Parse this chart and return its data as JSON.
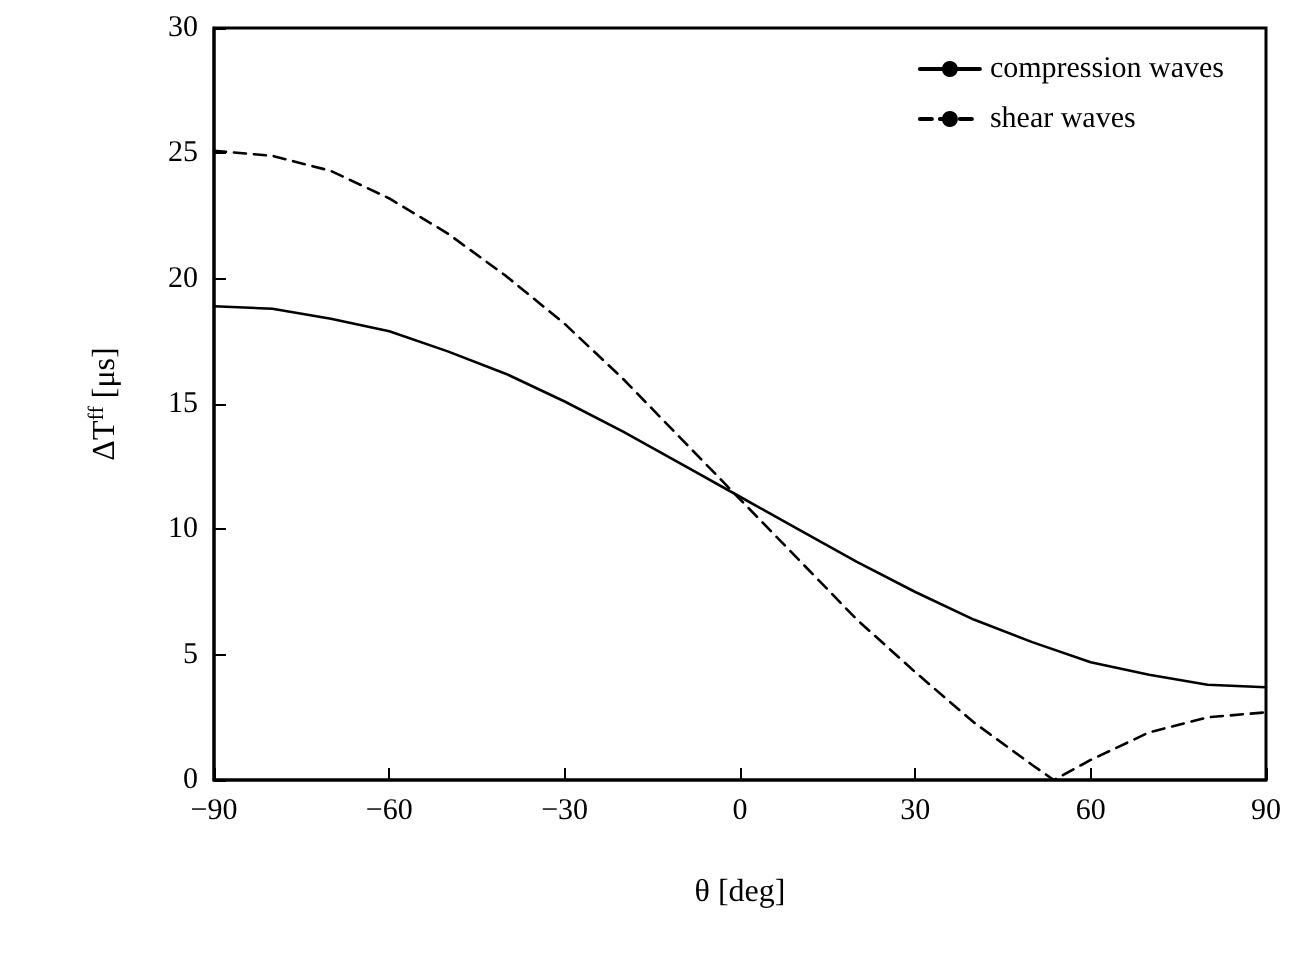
{
  "chart_data": {
    "type": "line",
    "xlabel": "θ [deg]",
    "ylabel": "ΔT$^{ff}$ [μs]",
    "x": [
      -90,
      -80,
      -70,
      -60,
      -50,
      -40,
      -30,
      -20,
      -10,
      0,
      10,
      20,
      30,
      40,
      50,
      60,
      70,
      80,
      90
    ],
    "series": [
      {
        "name": "compression waves",
        "color": "#000000",
        "line_style": "solid",
        "values": [
          18.9,
          18.8,
          18.4,
          17.9,
          17.1,
          16.2,
          15.1,
          13.9,
          12.6,
          11.3,
          10.0,
          8.7,
          7.5,
          6.4,
          5.5,
          4.7,
          4.2,
          3.8,
          3.7
        ]
      },
      {
        "name": "shear waves",
        "color": "#000000",
        "line_style": "dashed",
        "x": [
          -90,
          -80,
          -70,
          -60,
          -50,
          -40,
          -30,
          -20,
          -10,
          0,
          10,
          20,
          30,
          40,
          50,
          53.7,
          60,
          70,
          80,
          90
        ],
        "values": [
          25.1,
          24.9,
          24.3,
          23.2,
          21.8,
          20.1,
          18.2,
          16.0,
          13.6,
          11.2,
          8.8,
          6.4,
          4.3,
          2.3,
          0.6,
          0,
          0.8,
          1.9,
          2.5,
          2.7
        ]
      }
    ],
    "xlim": [
      -90,
      90
    ],
    "xticks": [
      {
        "value": -90,
        "label": "−90"
      },
      {
        "value": -60,
        "label": "−60"
      },
      {
        "value": -30,
        "label": "−30"
      },
      0,
      30,
      60,
      90
    ],
    "ylim": [
      0,
      30
    ],
    "yticks": [
      0,
      5,
      10,
      15,
      20,
      25,
      30
    ],
    "grid": false,
    "legend": "top right",
    "marker": "none"
  }
}
